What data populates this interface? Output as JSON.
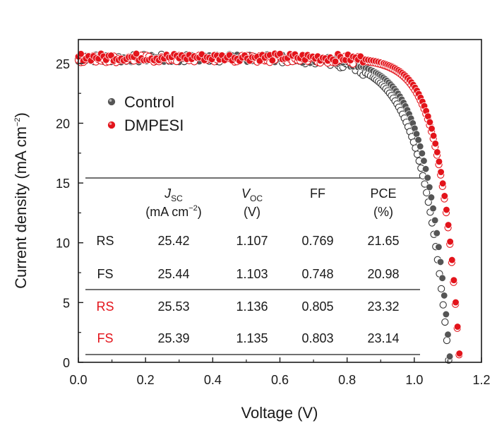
{
  "chart_data": {
    "type": "scatter",
    "title": "",
    "xlabel": "Voltage (V)",
    "ylabel": {
      "main": "Current density (mA cm",
      "sup": "−2",
      "close": ")"
    },
    "xlim": [
      0.0,
      1.2
    ],
    "ylim": [
      0,
      27
    ],
    "x_ticks": [
      "0.0",
      "0.2",
      "0.4",
      "0.6",
      "0.8",
      "1.0",
      "1.2"
    ],
    "y_ticks": [
      "0",
      "5",
      "10",
      "15",
      "20",
      "25"
    ],
    "grid": false,
    "legend_position": "top-left",
    "legend": [
      {
        "label": "Control",
        "color": "#555555"
      },
      {
        "label": "DMPESI",
        "color": "#e3141b"
      }
    ],
    "series": [
      {
        "name": "Control RS",
        "marker": "filled",
        "color": "#555555",
        "jsc": 25.42,
        "voc": 1.107,
        "ff": 0.769,
        "pce": 21.65
      },
      {
        "name": "Control FS",
        "marker": "open",
        "color": "#333333",
        "jsc": 25.44,
        "voc": 1.103,
        "ff": 0.748,
        "pce": 20.98
      },
      {
        "name": "DMPESI RS",
        "marker": "filled",
        "color": "#e3141b",
        "jsc": 25.53,
        "voc": 1.136,
        "ff": 0.805,
        "pce": 23.32
      },
      {
        "name": "DMPESI FS",
        "marker": "open",
        "color": "#e3141b",
        "jsc": 25.39,
        "voc": 1.135,
        "ff": 0.803,
        "pce": 23.14
      }
    ],
    "table": {
      "headers": [
        {
          "sym": "J",
          "sub": "SC",
          "unit_main": "(mA cm",
          "unit_sup": "−2",
          "unit_close": ")"
        },
        {
          "sym": "V",
          "sub": "OC",
          "unit_main": "(V)",
          "unit_sup": "",
          "unit_close": ""
        },
        {
          "sym": "FF",
          "sub": "",
          "unit_main": "",
          "unit_sup": "",
          "unit_close": ""
        },
        {
          "sym": "PCE",
          "sub": "",
          "unit_main": "(%)",
          "unit_sup": "",
          "unit_close": ""
        }
      ],
      "rows": [
        {
          "label": "RS",
          "label_color": "#1a1a1a",
          "values": [
            "25.42",
            "1.107",
            "0.769",
            "21.65"
          ]
        },
        {
          "label": "FS",
          "label_color": "#1a1a1a",
          "values": [
            "25.44",
            "1.103",
            "0.748",
            "20.98"
          ]
        },
        {
          "label": "RS",
          "label_color": "#e3141b",
          "values": [
            "25.53",
            "1.136",
            "0.805",
            "23.32"
          ]
        },
        {
          "label": "FS",
          "label_color": "#e3141b",
          "values": [
            "25.39",
            "1.135",
            "0.803",
            "23.14"
          ]
        }
      ]
    }
  }
}
